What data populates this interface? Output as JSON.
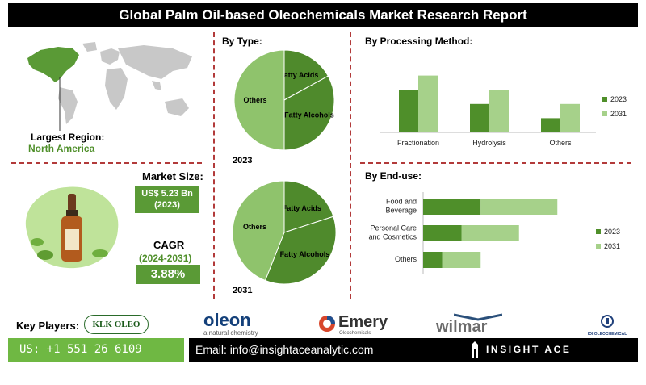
{
  "title": "Global Palm Oil-based Oleochemicals Market Research Report",
  "region": {
    "label": "Largest Region:",
    "value": "North America"
  },
  "market_size": {
    "label": "Market Size:",
    "value": "US$ 5.23 Bn",
    "year": "(2023)"
  },
  "cagr": {
    "label": "CAGR",
    "period": "(2024-2031)",
    "value": "3.88%"
  },
  "by_type": {
    "heading": "By Type:",
    "year1": "2023",
    "year2": "2031"
  },
  "processing": {
    "heading": "By  Processing Method:"
  },
  "enduse": {
    "heading": "By End-use:"
  },
  "key_players_label": "Key Players:",
  "logos": {
    "klk": "KLK OLEO",
    "oleon": "oleon",
    "oleon_sub": "a natural chemistry",
    "emery": "Emery",
    "emery_sub": "Oleochemicals",
    "wilmar": "wilmar",
    "ioi": "IOI OLEOCHEMICAL"
  },
  "footer": {
    "phone": "US: +1 551 26 6109",
    "email": "Email: info@insightaceanalytic.com",
    "brand": "INSIGHT ACE ANALYTIC"
  },
  "colors": {
    "dark_green": "#4f8f2a",
    "light_green": "#a6d18a",
    "pie_light": "#8fc36c",
    "pie_dark": "#4f8a2c"
  },
  "chart_data": [
    {
      "type": "pie",
      "title": "2023",
      "slices": [
        {
          "label": "Fatty Acids",
          "value": 17
        },
        {
          "label": "Fatty Alcohols",
          "value": 33
        },
        {
          "label": "Others",
          "value": 50
        }
      ]
    },
    {
      "type": "pie",
      "title": "2031",
      "slices": [
        {
          "label": "Fatty Acids",
          "value": 20
        },
        {
          "label": "Fatty Alcohols",
          "value": 36
        },
        {
          "label": "Others",
          "value": 44
        }
      ]
    },
    {
      "type": "bar",
      "title": "By  Processing Method:",
      "categories": [
        "Fractionation",
        "Hydrolysis",
        "Others"
      ],
      "series": [
        {
          "name": "2023",
          "values": [
            60,
            40,
            20
          ]
        },
        {
          "name": "2031",
          "values": [
            80,
            60,
            40
          ]
        }
      ],
      "ylim": [
        0,
        100
      ],
      "legend": "right"
    },
    {
      "type": "bar",
      "orientation": "horizontal",
      "title": "By End-use:",
      "categories": [
        "Food and Beverage",
        "Personal Care and Cosmetics",
        "Others"
      ],
      "series": [
        {
          "name": "2023",
          "values": [
            30,
            20,
            10
          ]
        },
        {
          "name": "2031",
          "values": [
            40,
            30,
            20
          ]
        }
      ],
      "stacked": true,
      "xlim": [
        0,
        80
      ],
      "legend": "right"
    }
  ]
}
